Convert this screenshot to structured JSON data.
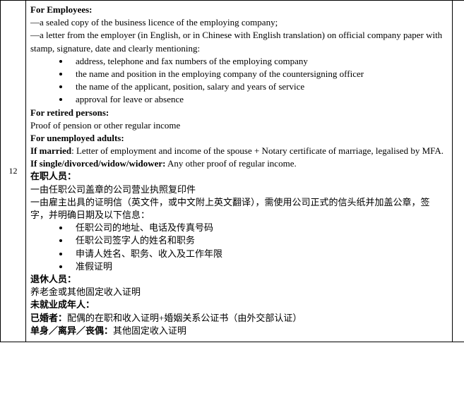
{
  "row": {
    "number": "12",
    "employees_header": "For Employees:",
    "emp_line1": "—a sealed copy of the business licence of the employing company;",
    "emp_line2": "—a letter from the employer (in English, or in Chinese with English translation) on official company paper with stamp, signature, date and clearly mentioning:",
    "emp_bullets": [
      "address, telephone and fax numbers of the employing company",
      "the name and position in the employing company of the countersigning officer",
      "the name of the applicant, position, salary and years of service",
      "approval for leave or absence"
    ],
    "retired_header": "For retired persons:",
    "retired_text": "Proof of pension or other regular income",
    "unemp_header": "For unemployed adults:",
    "married_label": "If married",
    "married_text": ": Letter of employment and income of the spouse + Notary certificate of marriage, legalised by MFA.",
    "single_label": "If single/divorced/widow/widower:",
    "single_text": " Any other proof of regular income.",
    "cn_emp_header": "在职人员：",
    "cn_emp_line1": "一由任职公司盖章的公司营业执照复印件",
    "cn_emp_line2": "一由雇主出具的证明信（英文件，或中文附上英文翻译），需使用公司正式的信头纸并加盖公章，签字，并明确日期及以下信息：",
    "cn_emp_bullets": [
      "任职公司的地址、电话及传真号码",
      "任职公司签字人的姓名和职务",
      "申请人姓名、职务、收入及工作年限",
      "准假证明"
    ],
    "cn_retired_header": "退休人员：",
    "cn_retired_text": "养老金或其他固定收入证明",
    "cn_unemp_header": "未就业成年人：",
    "cn_married_label": "已婚者：",
    "cn_married_text": "配偶的在职和收入证明+婚姻关系公证书（由外交部认证）",
    "cn_single_label": "单身／离异／丧偶：",
    "cn_single_text": "其他固定收入证明"
  }
}
